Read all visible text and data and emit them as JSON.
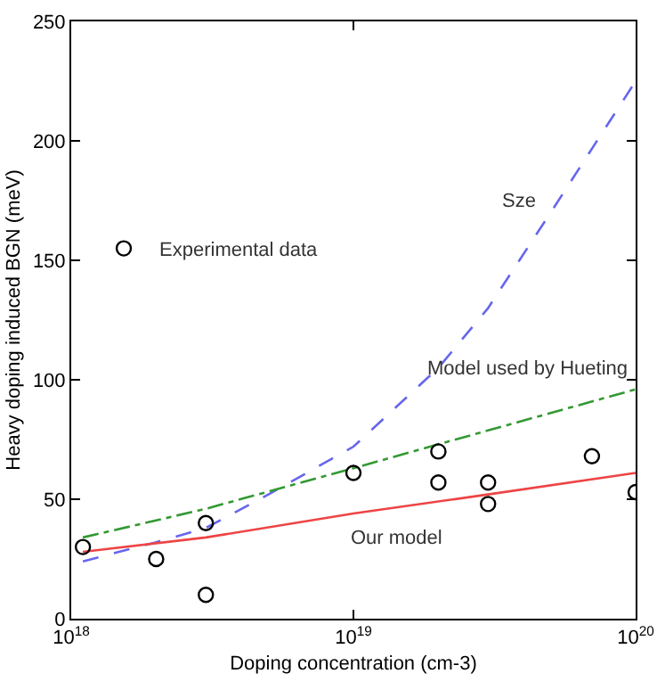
{
  "chart_data": {
    "type": "line",
    "xlabel": "Doping concentration (cm-3)",
    "ylabel": "Heavy doping induced BGN (meV)",
    "xlim": [
      1e+18,
      1e+20
    ],
    "xticks": [
      {
        "value": 1e+18,
        "label": "10$^{18}$"
      },
      {
        "value": 1e+19,
        "label": "10$^{19}$"
      },
      {
        "value": 1e+20,
        "label": "10$^{20}$"
      }
    ],
    "ylim": [
      0,
      250
    ],
    "yticks": [
      0,
      50,
      100,
      150,
      200,
      250
    ],
    "log": "x",
    "grid": false,
    "legend": "left",
    "series": [
      {
        "name": "Sze",
        "color": "#6666ee",
        "line_style": "dashed",
        "x": [
          1.1e+18,
          2e+18,
          3e+18,
          5e+18,
          1e+19,
          2e+19,
          3e+19,
          5e+19,
          1e+20
        ],
        "values": [
          24,
          32,
          38,
          52,
          72,
          105,
          130,
          170,
          225
        ]
      },
      {
        "name": "Model used by Hueting",
        "color": "#339933",
        "line_style": "dashdot",
        "x": [
          1.1e+18,
          3e+18,
          1e+19,
          2e+19,
          1e+20
        ],
        "values": [
          34,
          46,
          63,
          73,
          96
        ]
      },
      {
        "name": "Our model",
        "color": "#ee4444",
        "line_style": "solid",
        "x": [
          1.1e+18,
          3e+18,
          1e+19,
          3e+19,
          1e+20
        ],
        "values": [
          28,
          34,
          44,
          52,
          61
        ]
      },
      {
        "type": "scatter",
        "name": "Experimental data",
        "color": "#000000",
        "marker": "circle",
        "x": [
          1.1e+18,
          2e+18,
          3e+18,
          3e+18,
          1e+19,
          2e+19,
          2e+19,
          3e+19,
          3e+19,
          7e+19,
          1e+20
        ],
        "values": [
          30,
          25,
          40,
          10,
          61,
          70,
          57,
          57,
          48,
          68,
          53
        ]
      }
    ]
  }
}
